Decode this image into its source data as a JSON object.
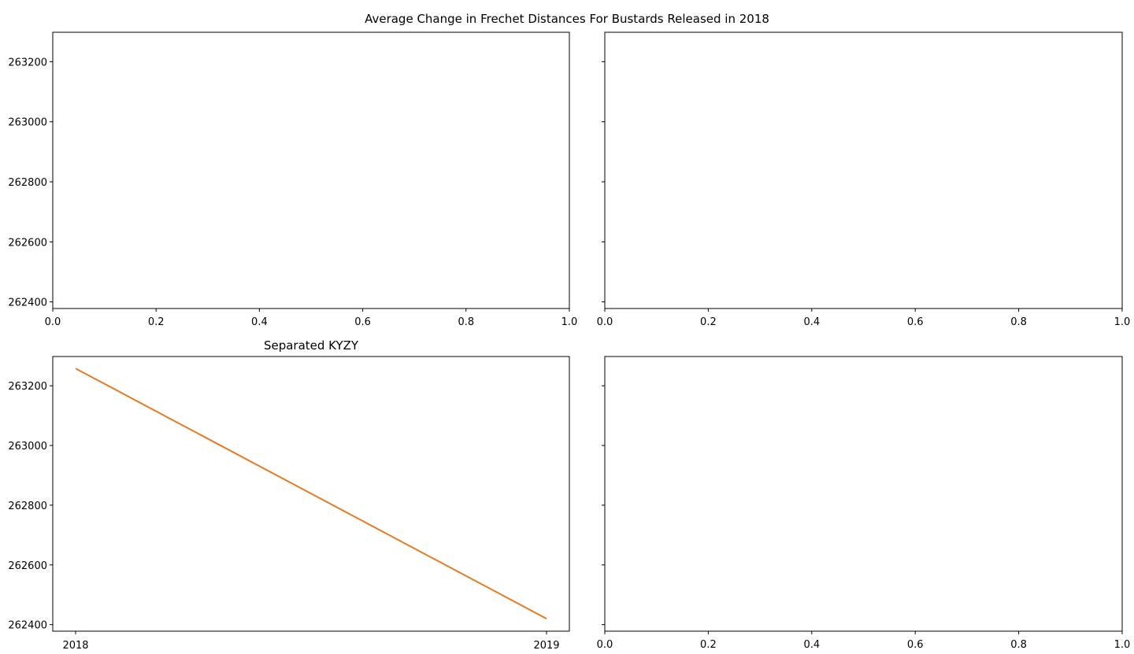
{
  "figure": {
    "suptitle": "Average Change in Frechet Distances For Bustards Released in 2018"
  },
  "chart_data": [
    {
      "type": "line",
      "position": "top-left",
      "title": "",
      "xlabel": "",
      "ylabel": "",
      "xlim": [
        0.0,
        1.0
      ],
      "ylim": [
        262378,
        263298
      ],
      "xticks": [
        "0.0",
        "0.2",
        "0.4",
        "0.6",
        "0.8",
        "1.0"
      ],
      "yticks": [
        "262400",
        "262600",
        "262800",
        "263000",
        "263200"
      ],
      "show_ytick_labels": true,
      "series": []
    },
    {
      "type": "line",
      "position": "top-right",
      "title": "",
      "xlabel": "",
      "ylabel": "",
      "xlim": [
        0.0,
        1.0
      ],
      "ylim": [
        262378,
        263298
      ],
      "xticks": [
        "0.0",
        "0.2",
        "0.4",
        "0.6",
        "0.8",
        "1.0"
      ],
      "yticks": [
        "262400",
        "262600",
        "262800",
        "263000",
        "263200"
      ],
      "show_ytick_labels": false,
      "series": []
    },
    {
      "type": "line",
      "position": "bottom-left",
      "title": "Separated KYZY",
      "xlabel": "",
      "ylabel": "",
      "categories": [
        "2018",
        "2019"
      ],
      "ylim": [
        262378,
        263298
      ],
      "yticks": [
        "262400",
        "262600",
        "262800",
        "263000",
        "263200"
      ],
      "show_ytick_labels": true,
      "series": [
        {
          "color": "#e07b28",
          "values": [
            263258,
            262420
          ]
        }
      ]
    },
    {
      "type": "line",
      "position": "bottom-right",
      "title": "",
      "xlabel": "",
      "ylabel": "",
      "xlim": [
        0.0,
        1.0
      ],
      "ylim": [
        262378,
        263298
      ],
      "xticks": [
        "0.0",
        "0.2",
        "0.4",
        "0.6",
        "0.8",
        "1.0"
      ],
      "yticks": [
        "262400",
        "262600",
        "262800",
        "263000",
        "263200"
      ],
      "show_ytick_labels": false,
      "series": []
    }
  ]
}
